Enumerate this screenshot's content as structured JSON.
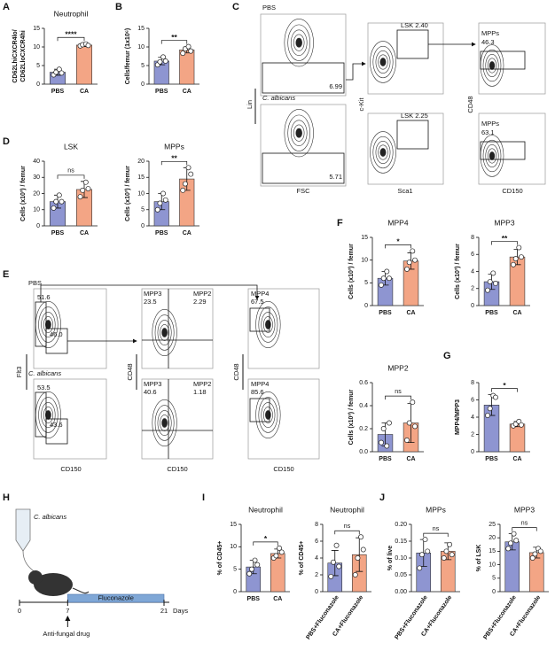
{
  "panel_letters": [
    "A",
    "B",
    "C",
    "D",
    "E",
    "F",
    "G",
    "H",
    "I",
    "J"
  ],
  "chart_data": [
    {
      "type": "bar",
      "title": "Neutrophil",
      "ylabel": [
        "CD62LhiCXCR4lo/",
        "CD62LloCXCR4hi"
      ],
      "categories": [
        "PBS",
        "CA"
      ],
      "values": [
        3.2,
        10.5
      ],
      "errors": [
        0.8,
        0.4
      ],
      "points": [
        [
          2.5,
          3.2,
          4.0,
          3.0
        ],
        [
          10.3,
          10.6,
          10.8,
          10.4
        ]
      ],
      "colors": [
        "#8e95d1",
        "#f3a585"
      ],
      "significance": "****",
      "ylim": [
        0,
        15
      ],
      "yticks": [
        0,
        5,
        10,
        15
      ]
    },
    {
      "type": "bar",
      "title": null,
      "ylabel": [
        "Cells/femur (1x10⁶)"
      ],
      "categories": [
        "PBS",
        "CA"
      ],
      "values": [
        6.2,
        9.2
      ],
      "errors": [
        1.0,
        0.8
      ],
      "points": [
        [
          5.2,
          6.0,
          7.3,
          6.2
        ],
        [
          8.3,
          9.5,
          10.1,
          8.9
        ]
      ],
      "colors": [
        "#8e95d1",
        "#f3a585"
      ],
      "significance": "**",
      "ylim": [
        0,
        15
      ],
      "yticks": [
        0,
        5,
        10,
        15
      ]
    },
    {
      "type": "bar",
      "title": "LSK",
      "ylabel": [
        "Cells (x10³) / femur"
      ],
      "categories": [
        "PBS",
        "CA"
      ],
      "values": [
        15,
        22.5
      ],
      "errors": [
        4,
        5
      ],
      "points": [
        [
          11,
          15,
          19,
          15
        ],
        [
          18,
          22,
          27,
          23
        ]
      ],
      "colors": [
        "#8e95d1",
        "#f3a585"
      ],
      "significance": "ns",
      "ylim": [
        0,
        40
      ],
      "yticks": [
        0,
        10,
        20,
        30,
        40
      ]
    },
    {
      "type": "bar",
      "title": "MPPs",
      "ylabel": [
        "Cells (x10³) / femur"
      ],
      "categories": [
        "PBS",
        "CA"
      ],
      "values": [
        7.5,
        14.5
      ],
      "errors": [
        2.5,
        3.5
      ],
      "points": [
        [
          5,
          7,
          10,
          8
        ],
        [
          11,
          13,
          18,
          16
        ]
      ],
      "colors": [
        "#8e95d1",
        "#f3a585"
      ],
      "significance": "**",
      "ylim": [
        0,
        20
      ],
      "yticks": [
        0,
        5,
        10,
        15,
        20
      ]
    },
    {
      "type": "bar",
      "title": "MPP4",
      "ylabel": [
        "Cells (x10³) / femur"
      ],
      "categories": [
        "PBS",
        "CA"
      ],
      "values": [
        6,
        9.8
      ],
      "errors": [
        1.5,
        1.8
      ],
      "points": [
        [
          4.5,
          6,
          7.5,
          6
        ],
        [
          8,
          9.5,
          12,
          10
        ]
      ],
      "colors": [
        "#8e95d1",
        "#f3a585"
      ],
      "significance": "*",
      "ylim": [
        0,
        15
      ],
      "yticks": [
        0,
        5,
        10,
        15
      ]
    },
    {
      "type": "bar",
      "title": "MPP3",
      "ylabel": [
        "Cells (x10³) / femur"
      ],
      "categories": [
        "PBS",
        "CA"
      ],
      "values": [
        2.8,
        5.7
      ],
      "errors": [
        0.9,
        0.9
      ],
      "points": [
        [
          1.8,
          2.8,
          3.8,
          2.6
        ],
        [
          4.8,
          5.5,
          6.8,
          5.7
        ]
      ],
      "colors": [
        "#8e95d1",
        "#f3a585"
      ],
      "significance": "**",
      "ylim": [
        0,
        8
      ],
      "yticks": [
        0,
        2,
        4,
        6,
        8
      ]
    },
    {
      "type": "bar",
      "title": "MPP2",
      "ylabel": [
        "Cells (x10³) / femur"
      ],
      "categories": [
        "PBS",
        "CA"
      ],
      "values": [
        0.15,
        0.25
      ],
      "errors": [
        0.1,
        0.17
      ],
      "points": [
        [
          0.08,
          0.2,
          0.05,
          0.25
        ],
        [
          0.1,
          0.25,
          0.43,
          0.22
        ]
      ],
      "colors": [
        "#8e95d1",
        "#f3a585"
      ],
      "significance": "ns",
      "ylim": [
        0,
        0.6
      ],
      "yticks": [
        {
          "value": 0,
          "label": "0.0"
        },
        0.2,
        0.4,
        0.6
      ]
    },
    {
      "type": "bar",
      "title": null,
      "ylabel": [
        "MPP4/MPP3"
      ],
      "categories": [
        "PBS",
        "CA"
      ],
      "values": [
        5.4,
        3.2
      ],
      "errors": [
        1.2,
        0.3
      ],
      "points": [
        [
          4.2,
          5,
          6.5,
          6.3
        ],
        [
          3,
          3.2,
          3.5,
          3.1
        ]
      ],
      "colors": [
        "#8e95d1",
        "#f3a585"
      ],
      "significance": "*",
      "ylim": [
        0,
        8
      ],
      "yticks": [
        0,
        2,
        4,
        6,
        8
      ]
    },
    {
      "type": "bar",
      "title": "Neutrophil",
      "ylabel": [
        "% of CD45+"
      ],
      "categories": [
        "PBS",
        "CA"
      ],
      "values": [
        5.5,
        8.5
      ],
      "errors": [
        1.5,
        1.0
      ],
      "points": [
        [
          4,
          5,
          7,
          6
        ],
        [
          7.5,
          8,
          9.7,
          8.8
        ]
      ],
      "colors": [
        "#8e95d1",
        "#f3a585"
      ],
      "significance": "*",
      "ylim": [
        0,
        15
      ],
      "yticks": [
        0,
        5,
        10,
        15
      ]
    },
    {
      "type": "bar",
      "title": "Neutrophil",
      "ylabel": [
        "% of CD45+"
      ],
      "categories": [
        "PBS+Fluconazole",
        "CA+Fluconazole"
      ],
      "values": [
        3.4,
        4.4
      ],
      "errors": [
        1.5,
        2.0
      ],
      "points": [
        [
          1.8,
          3.5,
          5.5,
          3
        ],
        [
          2,
          4,
          6.5,
          5
        ]
      ],
      "colors": [
        "#8e95d1",
        "#f3a585"
      ],
      "significance": "ns",
      "ylim": [
        0,
        8
      ],
      "yticks": [
        0,
        2,
        4,
        6,
        8
      ]
    },
    {
      "type": "bar",
      "title": "MPPs",
      "ylabel": [
        "% of live"
      ],
      "categories": [
        "PBS+Fluconazole",
        "CA+Fluconazole"
      ],
      "values": [
        0.115,
        0.12
      ],
      "errors": [
        0.04,
        0.025
      ],
      "points": [
        [
          0.07,
          0.11,
          0.155,
          0.12
        ],
        [
          0.1,
          0.12,
          0.14,
          0.11
        ]
      ],
      "colors": [
        "#8e95d1",
        "#f3a585"
      ],
      "significance": "ns",
      "ylim": [
        0,
        0.2
      ],
      "yticks": [
        {
          "value": 0,
          "label": "0.00"
        },
        0.05,
        {
          "value": 0.1,
          "label": "0.10"
        },
        0.15,
        {
          "value": 0.2,
          "label": "0.20"
        }
      ]
    },
    {
      "type": "bar",
      "title": "MPP3",
      "ylabel": [
        "% of LSK"
      ],
      "categories": [
        "PBS+Fluconazole",
        "CA+Fluconazole"
      ],
      "values": [
        18.5,
        14.5
      ],
      "errors": [
        3,
        2
      ],
      "points": [
        [
          16,
          18,
          21.5,
          19
        ],
        [
          12.5,
          14,
          16,
          15
        ]
      ],
      "colors": [
        "#8e95d1",
        "#f3a585"
      ],
      "significance": "ns",
      "ylim": [
        0,
        25
      ],
      "yticks": [
        0,
        5,
        10,
        15,
        20,
        25
      ]
    }
  ],
  "flow_c": {
    "samples": [
      "PBS",
      "C. albicans"
    ],
    "lin_gates": [
      "6.99",
      "5.71"
    ],
    "lsk_gates": [
      "LSK 2.40",
      "LSK 2.25"
    ],
    "mpp_gates": [
      [
        "MPPs",
        "46.3"
      ],
      [
        "MPPs",
        "63.1"
      ]
    ],
    "axes": {
      "lin": "Lin",
      "fsc": "FSC",
      "ckit": "c-Kit",
      "sca1": "Sca1",
      "cd48": "CD48",
      "cd150": "CD150"
    }
  },
  "flow_e": {
    "samples": [
      "PBS",
      "C. albicans"
    ],
    "flt3_gates": [
      [
        "51.6",
        "46.0"
      ],
      [
        "53.5",
        "43.6"
      ]
    ],
    "mpp32_gates": [
      [
        [
          "MPP3",
          "23.5"
        ],
        [
          "MPP2",
          "2.29"
        ]
      ],
      [
        [
          "MPP3",
          "40.6"
        ],
        [
          "MPP2",
          "1.18"
        ]
      ]
    ],
    "mpp4_gates": [
      [
        "MPP4",
        "67.5"
      ],
      [
        "MPP4",
        "85.6"
      ]
    ],
    "axes": {
      "flt3": "Flt3",
      "cd150": "CD150",
      "cd48": "CD48"
    }
  },
  "schematic": {
    "organism": "C. albicans",
    "drug": "Fluconazole",
    "days": [
      0,
      7,
      21
    ],
    "days_label": "Days",
    "arrow_label": "Anti-fungal drug"
  }
}
